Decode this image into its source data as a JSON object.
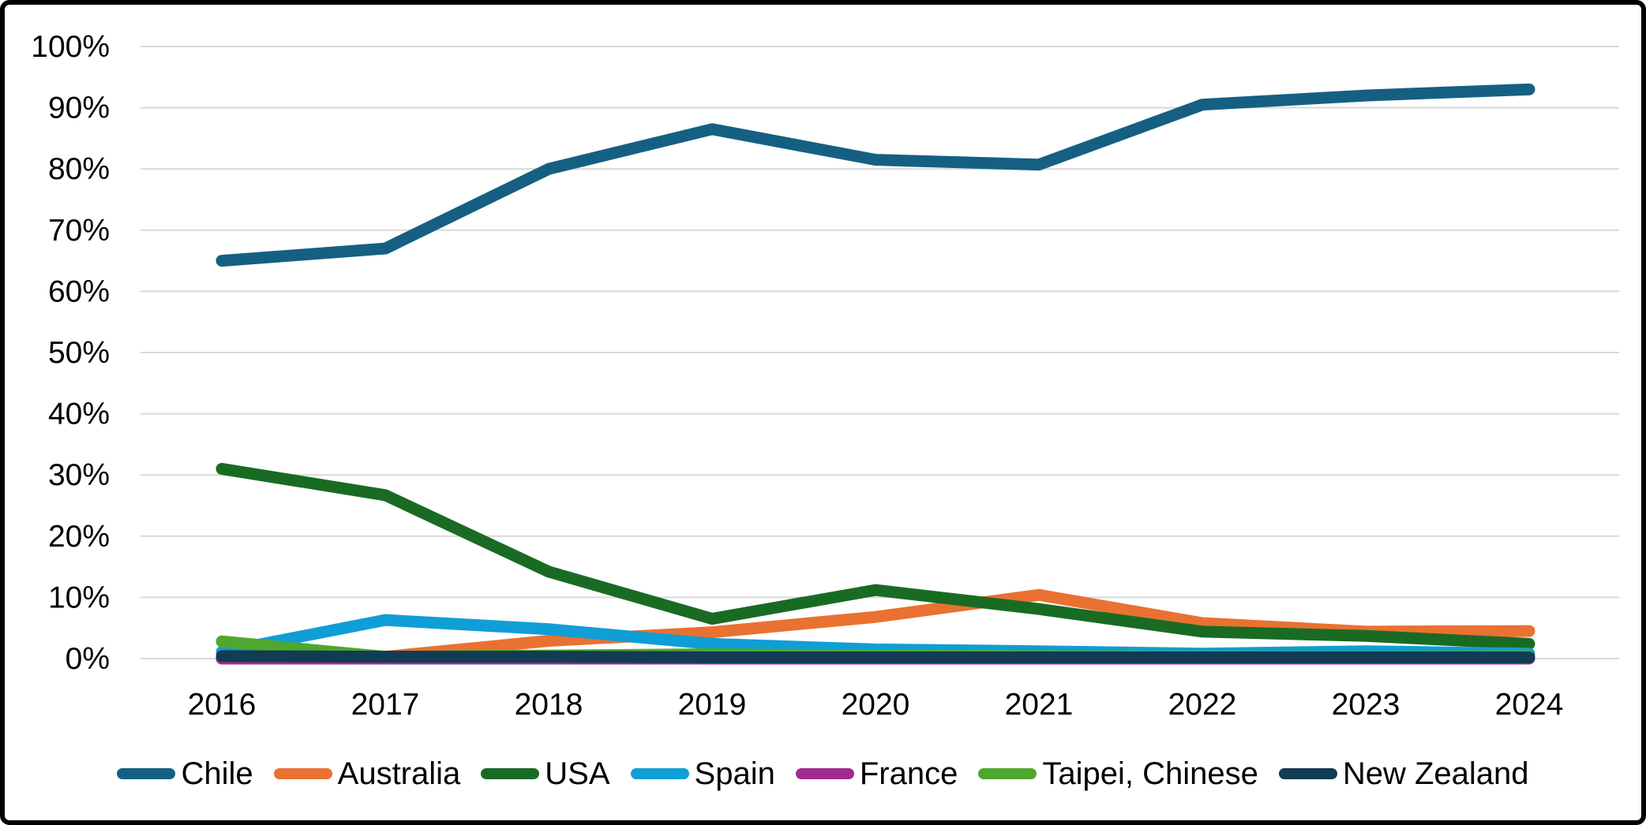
{
  "chart_data": {
    "type": "line",
    "title": "",
    "xlabel": "",
    "ylabel": "",
    "categories": [
      "2016",
      "2017",
      "2018",
      "2019",
      "2020",
      "2021",
      "2022",
      "2023",
      "2024"
    ],
    "series": [
      {
        "name": "Chile",
        "color": "#156082",
        "values": [
          65.0,
          67.0,
          80.0,
          86.5,
          81.5,
          80.7,
          90.5,
          92.0,
          93.0
        ]
      },
      {
        "name": "Australia",
        "color": "#E97132",
        "values": [
          0.0,
          0.3,
          2.9,
          4.3,
          6.8,
          10.4,
          5.8,
          4.4,
          4.5
        ]
      },
      {
        "name": "USA",
        "color": "#196B24",
        "values": [
          31.0,
          26.7,
          14.2,
          6.5,
          11.2,
          8.1,
          4.4,
          3.7,
          2.4
        ]
      },
      {
        "name": "Spain",
        "color": "#0F9ED5",
        "values": [
          1.1,
          6.3,
          4.8,
          2.4,
          1.5,
          1.2,
          0.8,
          1.2,
          0.8
        ]
      },
      {
        "name": "France",
        "color": "#A02B93",
        "values": [
          0.0,
          0.0,
          0.0,
          0.0,
          0.0,
          0.0,
          0.0,
          0.0,
          0.0
        ]
      },
      {
        "name": "Taipei, Chinese",
        "color": "#4EA72E",
        "values": [
          2.8,
          0.3,
          0.5,
          0.7,
          0.5,
          0.4,
          0.3,
          0.3,
          0.4
        ]
      },
      {
        "name": "New Zealand",
        "color": "#123B54",
        "values": [
          0.4,
          0.3,
          0.3,
          0.2,
          0.2,
          0.2,
          0.2,
          0.2,
          0.2
        ]
      }
    ],
    "y_ticks": [
      "100%",
      "90%",
      "80%",
      "70%",
      "60%",
      "50%",
      "40%",
      "30%",
      "20%",
      "10%",
      "0%"
    ],
    "ylim": [
      0,
      100
    ],
    "y_tick_step": 10,
    "grid": true,
    "legend_position": "bottom"
  },
  "styles": {
    "background_color": "#FFFFFF",
    "frame_border_color": "#000000",
    "gridline_color": "#D9D9D9",
    "axis_text_color": "#000000",
    "line_stroke_width": 15
  }
}
